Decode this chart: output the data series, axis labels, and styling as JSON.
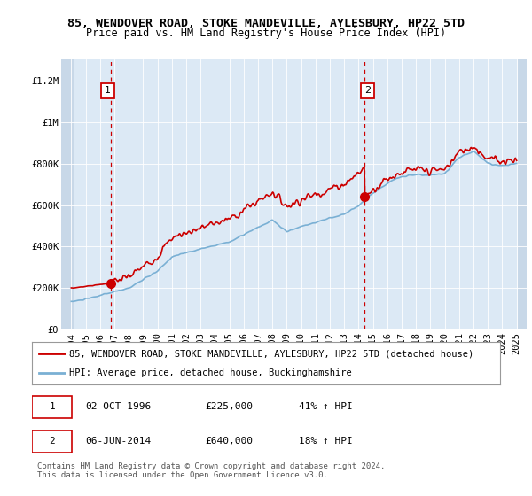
{
  "title": "85, WENDOVER ROAD, STOKE MANDEVILLE, AYLESBURY, HP22 5TD",
  "subtitle": "Price paid vs. HM Land Registry's House Price Index (HPI)",
  "ylim": [
    0,
    1300000
  ],
  "yticks": [
    0,
    200000,
    400000,
    600000,
    800000,
    1000000,
    1200000
  ],
  "ytick_labels": [
    "£0",
    "£200K",
    "£400K",
    "£600K",
    "£800K",
    "£1M",
    "£1.2M"
  ],
  "line1_color": "#cc0000",
  "line2_color": "#7ab0d4",
  "bg_color": "#dce9f5",
  "grid_color": "#ffffff",
  "sale1_year": 1996.75,
  "sale1_price": 225000,
  "sale2_year": 2014.42,
  "sale2_price": 640000,
  "legend_line1": "85, WENDOVER ROAD, STOKE MANDEVILLE, AYLESBURY, HP22 5TD (detached house)",
  "legend_line2": "HPI: Average price, detached house, Buckinghamshire",
  "table_row1_num": "1",
  "table_row1_date": "02-OCT-1996",
  "table_row1_price": "£225,000",
  "table_row1_hpi": "41% ↑ HPI",
  "table_row2_num": "2",
  "table_row2_date": "06-JUN-2014",
  "table_row2_price": "£640,000",
  "table_row2_hpi": "18% ↑ HPI",
  "footer": "Contains HM Land Registry data © Crown copyright and database right 2024.\nThis data is licensed under the Open Government Licence v3.0.",
  "title_fontsize": 9.5,
  "subtitle_fontsize": 8.5,
  "tick_fontsize": 7.5,
  "legend_fontsize": 7.5,
  "table_fontsize": 8.0,
  "footer_fontsize": 6.5
}
